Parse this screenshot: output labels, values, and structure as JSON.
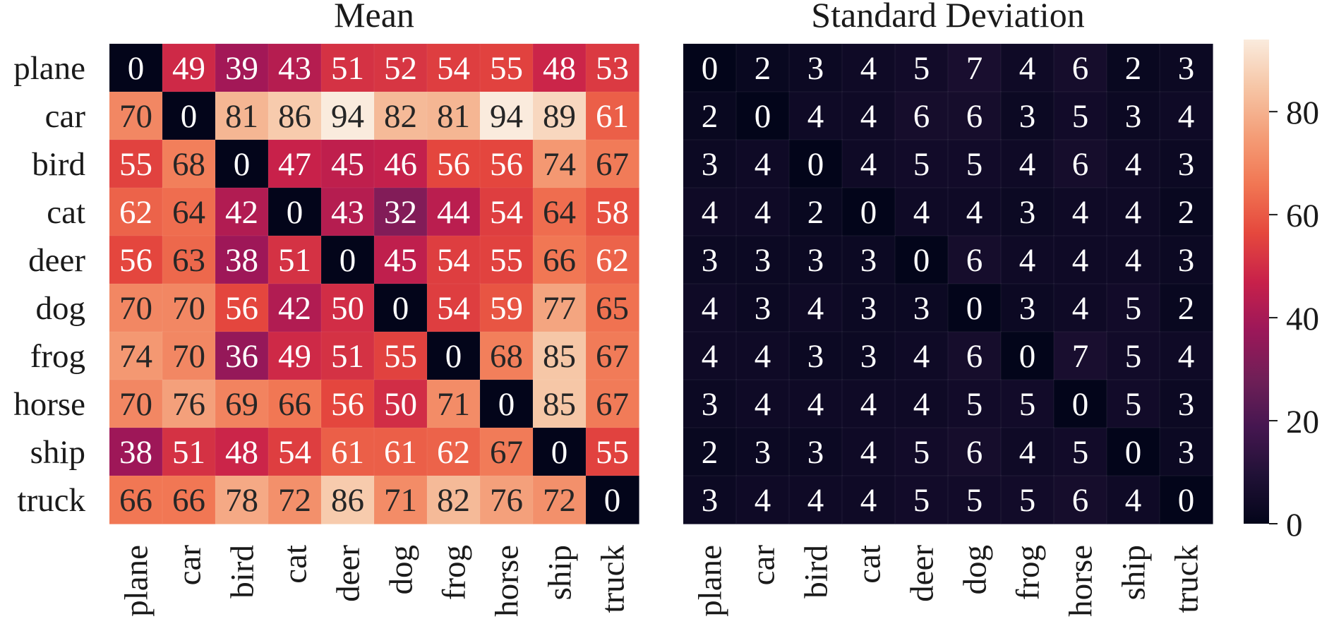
{
  "chart_data": [
    {
      "type": "heatmap",
      "title": "Mean",
      "xlabel": "",
      "ylabel": "",
      "rows": [
        "plane",
        "car",
        "bird",
        "cat",
        "deer",
        "dog",
        "frog",
        "horse",
        "ship",
        "truck"
      ],
      "cols": [
        "plane",
        "car",
        "bird",
        "cat",
        "deer",
        "dog",
        "frog",
        "horse",
        "ship",
        "truck"
      ],
      "values": [
        [
          0,
          49,
          39,
          43,
          51,
          52,
          54,
          55,
          48,
          53
        ],
        [
          70,
          0,
          81,
          86,
          94,
          82,
          81,
          94,
          89,
          61
        ],
        [
          55,
          68,
          0,
          47,
          45,
          46,
          56,
          56,
          74,
          67
        ],
        [
          62,
          64,
          42,
          0,
          43,
          32,
          44,
          54,
          64,
          58
        ],
        [
          56,
          63,
          38,
          51,
          0,
          45,
          54,
          55,
          66,
          62
        ],
        [
          70,
          70,
          56,
          42,
          50,
          0,
          54,
          59,
          77,
          65
        ],
        [
          74,
          70,
          36,
          49,
          51,
          55,
          0,
          68,
          85,
          67
        ],
        [
          70,
          76,
          69,
          66,
          56,
          50,
          71,
          0,
          85,
          67
        ],
        [
          38,
          51,
          48,
          54,
          61,
          61,
          62,
          67,
          0,
          55
        ],
        [
          66,
          66,
          78,
          72,
          86,
          71,
          82,
          76,
          72,
          0
        ]
      ],
      "value_range": [
        0,
        94
      ]
    },
    {
      "type": "heatmap",
      "title": "Standard Deviation",
      "xlabel": "",
      "ylabel": "",
      "rows": [
        "plane",
        "car",
        "bird",
        "cat",
        "deer",
        "dog",
        "frog",
        "horse",
        "ship",
        "truck"
      ],
      "cols": [
        "plane",
        "car",
        "bird",
        "cat",
        "deer",
        "dog",
        "frog",
        "horse",
        "ship",
        "truck"
      ],
      "values": [
        [
          0,
          2,
          3,
          4,
          5,
          7,
          4,
          6,
          2,
          3
        ],
        [
          2,
          0,
          4,
          4,
          6,
          6,
          3,
          5,
          3,
          4
        ],
        [
          3,
          4,
          0,
          4,
          5,
          5,
          4,
          6,
          4,
          3
        ],
        [
          4,
          4,
          2,
          0,
          4,
          4,
          3,
          4,
          4,
          2
        ],
        [
          3,
          3,
          3,
          3,
          0,
          6,
          4,
          4,
          4,
          3
        ],
        [
          4,
          3,
          4,
          3,
          3,
          0,
          3,
          4,
          5,
          2
        ],
        [
          4,
          4,
          3,
          3,
          4,
          6,
          0,
          7,
          5,
          4
        ],
        [
          3,
          4,
          4,
          4,
          4,
          5,
          5,
          0,
          5,
          3
        ],
        [
          2,
          3,
          3,
          4,
          5,
          6,
          4,
          5,
          0,
          3
        ],
        [
          3,
          4,
          4,
          4,
          5,
          5,
          5,
          6,
          4,
          0
        ]
      ],
      "value_range": [
        0,
        94
      ]
    }
  ],
  "colorbar": {
    "ticks": [
      "0",
      "20",
      "40",
      "60",
      "80"
    ],
    "range": [
      0,
      94
    ],
    "colormap": "rocket"
  }
}
